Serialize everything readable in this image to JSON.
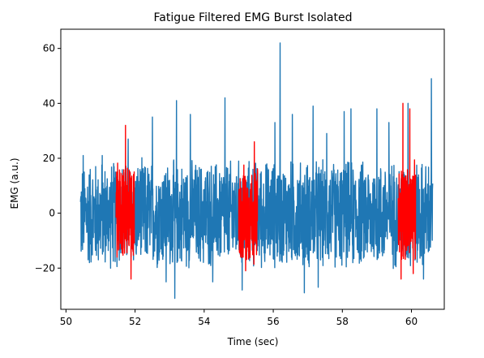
{
  "chart_data": {
    "type": "line",
    "title": "Fatigue Filtered EMG Burst Isolated",
    "xlabel": "Time (sec)",
    "ylabel": "EMG (a.u.)",
    "xlim": [
      49.85,
      60.95
    ],
    "ylim": [
      -35,
      67
    ],
    "x_ticks": [
      50,
      52,
      54,
      56,
      58,
      60
    ],
    "y_ticks": [
      -20,
      0,
      20,
      40,
      60
    ],
    "x_tick_labels": [
      "50",
      "52",
      "54",
      "56",
      "58",
      "60"
    ],
    "y_tick_labels": [
      "−20",
      "0",
      "20",
      "40",
      "60"
    ],
    "grid": false,
    "legend": "none",
    "series": [
      {
        "color": "#1f77b4",
        "x_range": [
          50.42,
          60.62
        ],
        "typical_range": [
          -22,
          21
        ],
        "peaks": [
          {
            "x": 50.5,
            "y": 21
          },
          {
            "x": 51.05,
            "y": 21
          },
          {
            "x": 51.8,
            "y": 27
          },
          {
            "x": 52.5,
            "y": 35
          },
          {
            "x": 52.9,
            "y": -25
          },
          {
            "x": 53.15,
            "y": -31
          },
          {
            "x": 53.2,
            "y": 41
          },
          {
            "x": 53.6,
            "y": 36
          },
          {
            "x": 54.25,
            "y": -25
          },
          {
            "x": 54.6,
            "y": 42
          },
          {
            "x": 55.1,
            "y": -28
          },
          {
            "x": 56.05,
            "y": 33
          },
          {
            "x": 56.2,
            "y": 62
          },
          {
            "x": 56.55,
            "y": 36
          },
          {
            "x": 56.9,
            "y": -29
          },
          {
            "x": 57.15,
            "y": 39
          },
          {
            "x": 57.3,
            "y": -27
          },
          {
            "x": 57.55,
            "y": 29
          },
          {
            "x": 58.05,
            "y": 37
          },
          {
            "x": 58.25,
            "y": 38
          },
          {
            "x": 59.0,
            "y": 38
          },
          {
            "x": 59.35,
            "y": 33
          },
          {
            "x": 59.9,
            "y": 40
          },
          {
            "x": 60.35,
            "y": -24
          },
          {
            "x": 60.58,
            "y": 49
          }
        ]
      },
      {
        "color": "#ff0000",
        "segments": [
          {
            "x_range": [
              51.45,
              51.98
            ],
            "typical_range": [
              -20,
              20
            ],
            "peaks": [
              {
                "x": 51.72,
                "y": 32
              },
              {
                "x": 51.88,
                "y": -24
              }
            ]
          },
          {
            "x_range": [
              55.0,
              55.55
            ],
            "typical_range": [
              -20,
              19
            ],
            "peaks": [
              {
                "x": 55.45,
                "y": 26
              },
              {
                "x": 55.2,
                "y": -21
              }
            ]
          },
          {
            "x_range": [
              59.62,
              60.12
            ],
            "typical_range": [
              -20,
              20
            ],
            "peaks": [
              {
                "x": 59.75,
                "y": 40
              },
              {
                "x": 59.95,
                "y": 38
              },
              {
                "x": 59.7,
                "y": -24
              },
              {
                "x": 60.05,
                "y": -22
              }
            ]
          }
        ]
      }
    ]
  }
}
